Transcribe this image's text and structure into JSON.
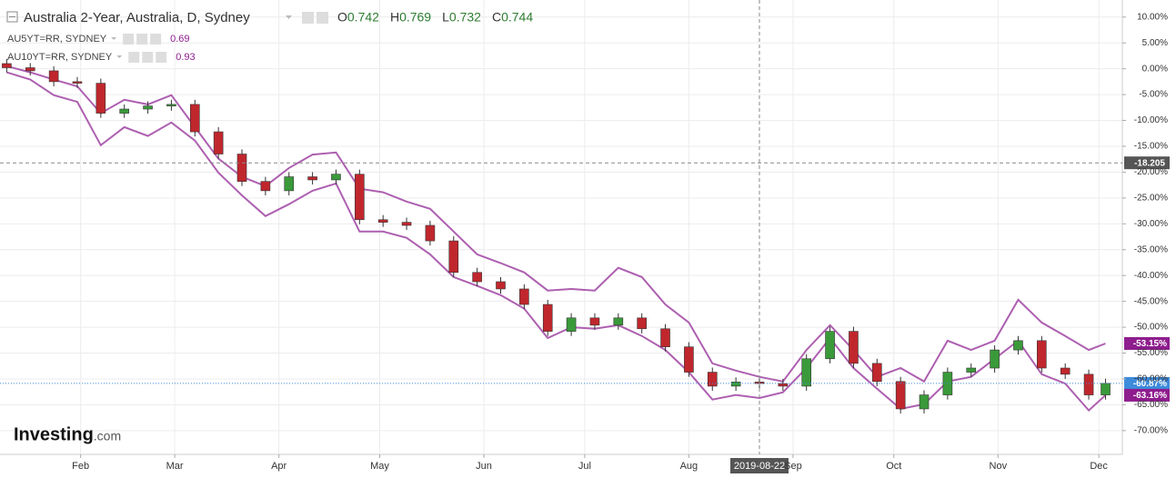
{
  "chart_data": {
    "type": "candlestick",
    "title": "Australia 2-Year, Australia, D, Sydney",
    "ohlc": [
      {
        "label": "O",
        "value": "0.742"
      },
      {
        "label": "H",
        "value": "0.769"
      },
      {
        "label": "L",
        "value": "0.732"
      },
      {
        "label": "C",
        "value": "0.744"
      }
    ],
    "x": [
      10,
      17,
      24,
      31,
      38,
      45,
      52,
      59,
      66,
      73,
      80,
      87,
      94,
      101,
      108,
      115,
      122,
      129,
      136,
      143,
      150,
      157,
      164,
      171,
      178,
      185,
      192,
      199,
      206,
      213,
      220,
      227,
      234,
      241,
      248,
      255,
      262,
      269,
      276,
      283,
      290,
      297,
      304,
      311,
      318,
      325,
      332,
      337
    ],
    "candles": {
      "up_color": "#3a9a3a",
      "down_color": "#c0272d",
      "last_label": "-60.87%",
      "last_color": "#3d8bdb",
      "open": [
        1.0,
        0.2,
        -0.4,
        -2.5,
        -2.8,
        -8.6,
        -7.8,
        -7.2,
        -6.9,
        -12.2,
        -16.5,
        -21.8,
        -23.6,
        -20.9,
        -21.5,
        -20.4,
        -29.2,
        -29.7,
        -30.3,
        -33.3,
        -39.4,
        -41.2,
        -42.6,
        -45.6,
        -50.8,
        -48.2,
        -49.6,
        -48.2,
        -50.3,
        -53.8,
        -58.7,
        -61.4,
        -60.6,
        -60.9,
        -61.4,
        -56.1,
        -50.8,
        -57.0,
        -60.5,
        -65.8,
        -63.1,
        -58.7,
        -57.9,
        -54.4,
        -52.6,
        -57.9,
        -59.1,
        -63.1
      ],
      "high": [
        1.9,
        1.1,
        0.5,
        -1.6,
        -1.9,
        -6.9,
        -6.3,
        -6.0,
        -6.0,
        -11.3,
        -15.6,
        -20.9,
        -20.0,
        -20.0,
        -19.5,
        -19.5,
        -28.3,
        -28.8,
        -29.4,
        -32.4,
        -38.5,
        -40.3,
        -41.7,
        -44.7,
        -47.3,
        -47.3,
        -47.3,
        -47.3,
        -49.4,
        -52.9,
        -57.8,
        -59.7,
        -59.7,
        -60.0,
        -55.2,
        -49.9,
        -49.9,
        -56.1,
        -59.6,
        -62.2,
        -57.8,
        -57.0,
        -53.5,
        -51.7,
        -51.7,
        -57.0,
        -58.2,
        -59.97
      ],
      "low": [
        -0.7,
        -1.3,
        -3.4,
        -3.7,
        -9.5,
        -9.5,
        -8.7,
        -8.1,
        -13.1,
        -17.4,
        -22.7,
        -24.5,
        -24.5,
        -22.4,
        -22.4,
        -30.1,
        -30.6,
        -31.2,
        -34.2,
        -40.3,
        -42.1,
        -43.5,
        -46.5,
        -51.7,
        -51.7,
        -50.5,
        -50.5,
        -51.2,
        -54.7,
        -59.6,
        -62.3,
        -62.3,
        -61.8,
        -62.3,
        -62.3,
        -57.0,
        -57.9,
        -61.4,
        -66.7,
        -66.7,
        -64.0,
        -59.6,
        -58.8,
        -55.3,
        -58.8,
        -60.0,
        -64.0,
        -64.0
      ],
      "close": [
        0.2,
        -0.4,
        -2.5,
        -2.8,
        -8.6,
        -7.8,
        -7.2,
        -6.9,
        -12.2,
        -16.5,
        -21.8,
        -23.6,
        -20.9,
        -21.5,
        -20.4,
        -29.2,
        -29.7,
        -30.3,
        -33.3,
        -39.4,
        -41.2,
        -42.6,
        -45.6,
        -50.8,
        -48.2,
        -49.6,
        -48.2,
        -50.3,
        -53.8,
        -58.7,
        -61.4,
        -60.6,
        -60.9,
        -61.4,
        -56.1,
        -50.8,
        -57.0,
        -60.5,
        -65.8,
        -63.1,
        -58.7,
        -57.9,
        -54.4,
        -52.6,
        -57.9,
        -59.1,
        -63.1,
        -60.87
      ]
    },
    "series": [
      {
        "name": "AU5YT=RR, SYDNEY",
        "legend_value": "0.69",
        "color": "#ad5fb0",
        "label_color": "#8e1d8e",
        "last_label": "-63.16%",
        "values": [
          -0.7,
          -2.1,
          -5.1,
          -6.4,
          -14.8,
          -11.3,
          -13.0,
          -10.4,
          -13.9,
          -20.1,
          -24.5,
          -28.5,
          -26.2,
          -23.6,
          -22.2,
          -31.5,
          -31.5,
          -32.7,
          -35.9,
          -40.3,
          -42.0,
          -43.8,
          -46.4,
          -52.1,
          -50.0,
          -50.3,
          -49.6,
          -51.7,
          -54.4,
          -58.7,
          -64.0,
          -63.1,
          -63.7,
          -62.6,
          -57.9,
          -52.1,
          -57.9,
          -61.9,
          -65.8,
          -64.9,
          -60.5,
          -59.6,
          -56.1,
          -52.6,
          -59.1,
          -60.9,
          -66.1,
          -63.16
        ]
      },
      {
        "name": "AU10YT=RR, SYDNEY",
        "legend_value": "0.93",
        "color": "#ad5fb0",
        "label_color": "#8e1d8e",
        "last_label": "-53.15%",
        "values": [
          0.5,
          -0.7,
          -2.1,
          -3.4,
          -8.6,
          -6.0,
          -6.9,
          -5.1,
          -11.3,
          -17.4,
          -20.9,
          -22.7,
          -19.2,
          -16.6,
          -16.2,
          -23.2,
          -23.9,
          -25.7,
          -27.1,
          -31.5,
          -35.9,
          -37.6,
          -39.4,
          -42.9,
          -42.6,
          -42.9,
          -38.5,
          -40.3,
          -45.6,
          -49.1,
          -57.0,
          -58.4,
          -59.6,
          -60.5,
          -54.4,
          -49.6,
          -54.4,
          -59.6,
          -57.9,
          -60.5,
          -52.6,
          -54.4,
          -52.6,
          -44.7,
          -49.1,
          -51.7,
          -54.4,
          -53.15
        ]
      }
    ],
    "xlim": [
      8,
      342
    ],
    "ylim": [
      -74.6,
      13.3
    ],
    "xticks": [
      {
        "value": 32,
        "label": "Feb"
      },
      {
        "value": 60,
        "label": "Mar"
      },
      {
        "value": 91,
        "label": "Apr"
      },
      {
        "value": 121,
        "label": "May"
      },
      {
        "value": 152,
        "label": "Jun"
      },
      {
        "value": 182,
        "label": "Jul"
      },
      {
        "value": 213,
        "label": "Aug"
      },
      {
        "value": 244,
        "label": "Sep"
      },
      {
        "value": 274,
        "label": "Oct"
      },
      {
        "value": 305,
        "label": "Nov"
      },
      {
        "value": 335,
        "label": "Dec"
      }
    ],
    "yticks": [
      {
        "value": 10,
        "label": "10.00%"
      },
      {
        "value": 5,
        "label": "5.00%"
      },
      {
        "value": 0,
        "label": "0.00%"
      },
      {
        "value": -5,
        "label": "-5.00%"
      },
      {
        "value": -10,
        "label": "-10.00%"
      },
      {
        "value": -15,
        "label": "-15.00%"
      },
      {
        "value": -20,
        "label": "-20.00%"
      },
      {
        "value": -25,
        "label": "-25.00%"
      },
      {
        "value": -30,
        "label": "-30.00%"
      },
      {
        "value": -35,
        "label": "-35.00%"
      },
      {
        "value": -40,
        "label": "-40.00%"
      },
      {
        "value": -45,
        "label": "-45.00%"
      },
      {
        "value": -50,
        "label": "-50.00%"
      },
      {
        "value": -55,
        "label": "-55.00%"
      },
      {
        "value": -60,
        "label": "-60.00%"
      },
      {
        "value": -65,
        "label": "-65.00%"
      },
      {
        "value": -70,
        "label": "-70.00%"
      }
    ],
    "grid": true,
    "crosshair": {
      "x": 234,
      "x_label": "2019-08-22",
      "y": -18.205,
      "y_label": "-18.205"
    },
    "logo": "Investing",
    "logo_suffix": ".com"
  }
}
